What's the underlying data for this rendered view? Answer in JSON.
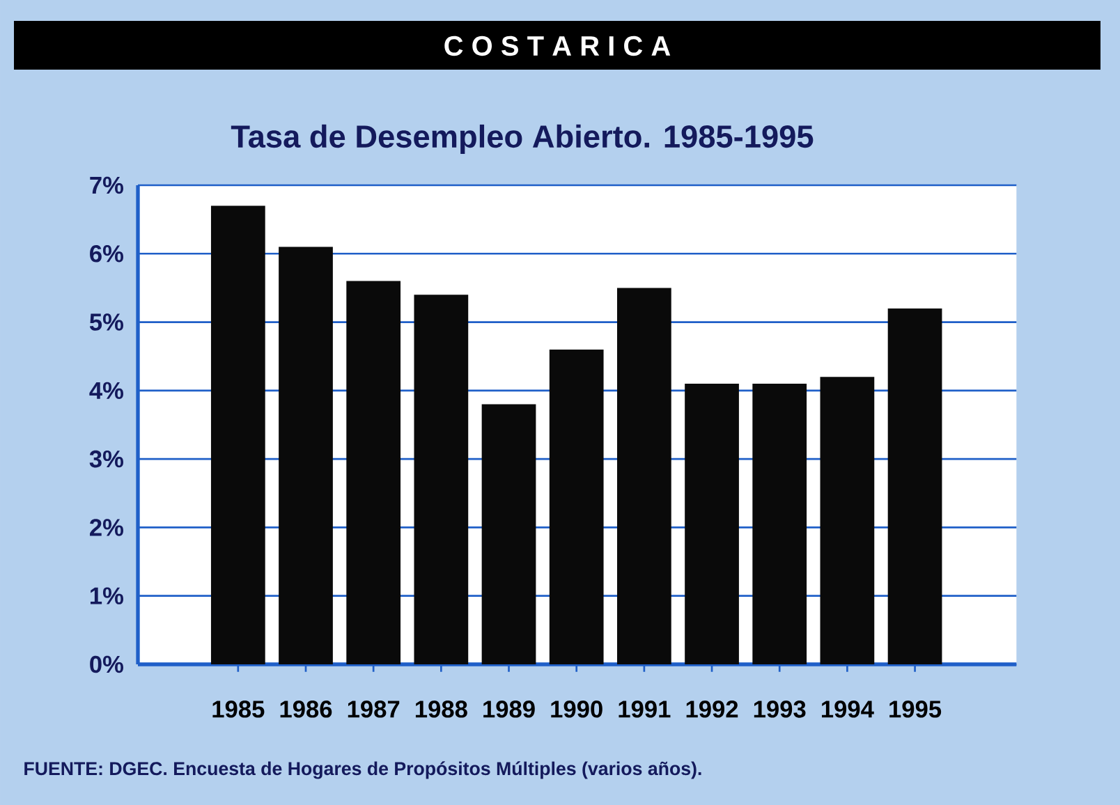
{
  "chart_data": {
    "type": "bar",
    "title": "C O S T A   R I C A",
    "subtitle": "Tasa de Desempleo Abierto. 1985-1995",
    "categories": [
      "1985",
      "1986",
      "1987",
      "1988",
      "1989",
      "1990",
      "1991",
      "1992",
      "1993",
      "1994",
      "1995"
    ],
    "values": [
      6.7,
      6.1,
      5.6,
      5.4,
      3.8,
      4.6,
      5.5,
      4.1,
      4.1,
      4.2,
      5.2
    ],
    "color": "#0a0a0a",
    "ylim": [
      0,
      7
    ],
    "yticks": [
      {
        "value": 0,
        "label": "0%"
      },
      {
        "value": 1,
        "label": "1%"
      },
      {
        "value": 2,
        "label": "2%"
      },
      {
        "value": 3,
        "label": "3%"
      },
      {
        "value": 4,
        "label": "4%"
      },
      {
        "value": 5,
        "label": "5%"
      },
      {
        "value": 6,
        "label": "6%"
      },
      {
        "value": 7,
        "label": "7%"
      }
    ],
    "grid": "y",
    "annotations": [
      "FUENTE: DGEC. Encuesta de Hogares de Propósitos Múltiples (varios años)."
    ]
  }
}
